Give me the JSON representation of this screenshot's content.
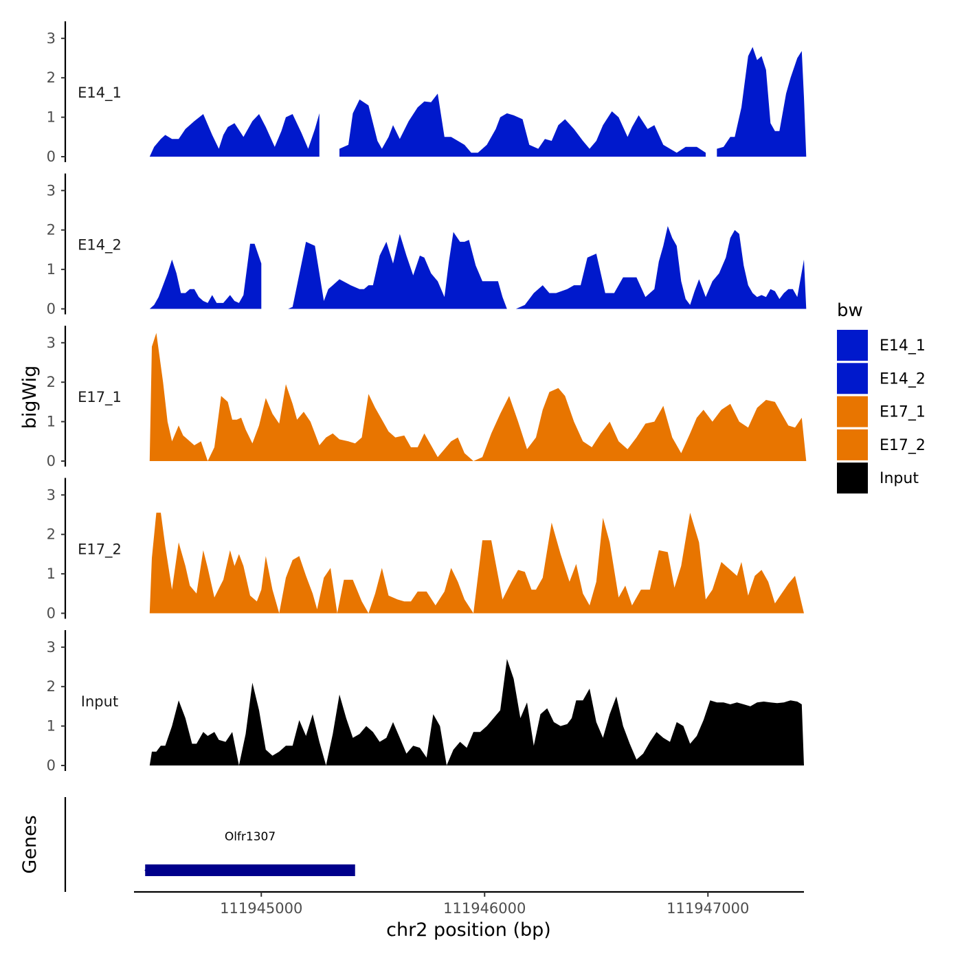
{
  "chart_data": {
    "type": "area",
    "ylabel": "bigWig",
    "xlabel": "chr2 position (bp)",
    "gene_track_label": "Genes",
    "legend_title": "bw",
    "legend_position": "right",
    "xlim": [
      111944430,
      111947430
    ],
    "ylim": [
      0,
      3.3
    ],
    "y_ticks": [
      "0",
      "1",
      "2",
      "3"
    ],
    "x_ticks": [
      {
        "value": 111945000,
        "label": "111945000"
      },
      {
        "value": 111946000,
        "label": "111946000"
      },
      {
        "value": 111947000,
        "label": "111947000"
      }
    ],
    "series": [
      {
        "name": "E14_1",
        "color": "#0019CC",
        "x": [
          111944500,
          111944520,
          111944550,
          111944570,
          111944600,
          111944630,
          111944660,
          111944700,
          111944740,
          111944780,
          111944810,
          111944830,
          111944850,
          111944880,
          111944920,
          111944960,
          111944990,
          111945020,
          111945060,
          111945090,
          111945110,
          111945140,
          111945180,
          111945210,
          111945240,
          111945260,
          111945280,
          111945320,
          111945350,
          111945390,
          111945410,
          111945440,
          111945480,
          111945520,
          111945540,
          111945570,
          111945590,
          111945620,
          111945660,
          111945700,
          111945730,
          111945760,
          111945790,
          111945820,
          111945850,
          111945880,
          111945910,
          111945940,
          111945970,
          111946010,
          111946050,
          111946070,
          111946100,
          111946130,
          111946170,
          111946200,
          111946240,
          111946270,
          111946300,
          111946330,
          111946360,
          111946400,
          111946440,
          111946470,
          111946500,
          111946530,
          111946570,
          111946600,
          111946640,
          111946660,
          111946690,
          111946730,
          111946760,
          111946800,
          111946860,
          111946900,
          111946950,
          111946990,
          111947010,
          111947040,
          111947070,
          111947100,
          111947120,
          111947150,
          111947180,
          111947200,
          111947220,
          111947240,
          111947260,
          111947280,
          111947300,
          111947320,
          111947350,
          111947370,
          111947400,
          111947420,
          111947430,
          111947440
        ],
        "y": [
          0,
          0.25,
          0.45,
          0.55,
          0.45,
          0.45,
          0.7,
          0.9,
          1.08,
          0.55,
          0.2,
          0.55,
          0.75,
          0.85,
          0.5,
          0.9,
          1.08,
          0.75,
          0.25,
          0.65,
          1.0,
          1.08,
          0.6,
          0.2,
          0.7,
          1.1,
          1.25,
          0.3,
          0.2,
          0.3,
          1.1,
          1.45,
          1.3,
          0.4,
          0.2,
          0.5,
          0.8,
          0.45,
          0.9,
          1.25,
          1.4,
          1.38,
          1.6,
          0.5,
          0.5,
          0.4,
          0.3,
          0.1,
          0.1,
          0.3,
          0.7,
          1.0,
          1.1,
          1.05,
          0.95,
          0.3,
          0.2,
          0.45,
          0.4,
          0.8,
          0.95,
          0.7,
          0.4,
          0.2,
          0.4,
          0.8,
          1.15,
          1.0,
          0.5,
          0.75,
          1.05,
          0.7,
          0.8,
          0.3,
          0.1,
          0.25,
          0.25,
          0.1,
          0.05,
          0.2,
          0.25,
          0.5,
          0.5,
          1.25,
          2.55,
          2.78,
          2.45,
          2.55,
          2.2,
          0.85,
          0.65,
          0.65,
          1.6,
          2.0,
          2.5,
          2.68,
          1.5,
          0
        ],
        "gaps": [
          [
            111945270,
            111945350
          ],
          [
            111946990,
            111947020
          ]
        ]
      },
      {
        "name": "E14_2",
        "color": "#0019CC",
        "x": [
          111944500,
          111944520,
          111944540,
          111944560,
          111944580,
          111944600,
          111944620,
          111944640,
          111944660,
          111944680,
          111944700,
          111944720,
          111944740,
          111944760,
          111944780,
          111944800,
          111944830,
          111944860,
          111944880,
          111944900,
          111944920,
          111944950,
          111944970,
          111945000,
          111945050,
          111945080,
          111945100,
          111945120,
          111945140,
          111945160,
          111945200,
          111945240,
          111945280,
          111945300,
          111945320,
          111945350,
          111945400,
          111945440,
          111945460,
          111945480,
          111945500,
          111945530,
          111945560,
          111945590,
          111945620,
          111945650,
          111945680,
          111945710,
          111945730,
          111945760,
          111945790,
          111945820,
          111945840,
          111945860,
          111945890,
          111945910,
          111945930,
          111945960,
          111945990,
          111946020,
          111946060,
          111946080,
          111946100,
          111946140,
          111946180,
          111946220,
          111946260,
          111946290,
          111946320,
          111946370,
          111946400,
          111946430,
          111946460,
          111946500,
          111946540,
          111946580,
          111946620,
          111946680,
          111946720,
          111946760,
          111946780,
          111946800,
          111946820,
          111946840,
          111946860,
          111946880,
          111946900,
          111946920,
          111946940,
          111946960,
          111946990,
          111947020,
          111947050,
          111947080,
          111947100,
          111947120,
          111947140,
          111947160,
          111947180,
          111947200,
          111947220,
          111947240,
          111947260,
          111947280,
          111947300,
          111947320,
          111947340,
          111947360,
          111947380,
          111947400,
          111947430,
          111947440
        ],
        "y": [
          0,
          0.1,
          0.3,
          0.6,
          0.9,
          1.25,
          0.9,
          0.4,
          0.4,
          0.5,
          0.5,
          0.3,
          0.2,
          0.15,
          0.35,
          0.15,
          0.15,
          0.35,
          0.2,
          0.15,
          0.35,
          1.65,
          1.65,
          1.15,
          0.6,
          0.0,
          0.0,
          0.0,
          0.05,
          0.6,
          1.7,
          1.6,
          0.2,
          0.5,
          0.6,
          0.75,
          0.6,
          0.5,
          0.5,
          0.6,
          0.6,
          1.35,
          1.7,
          1.15,
          1.9,
          1.35,
          0.85,
          1.35,
          1.3,
          0.9,
          0.7,
          0.3,
          1.2,
          1.95,
          1.7,
          1.7,
          1.75,
          1.1,
          0.7,
          0.7,
          0.7,
          0.3,
          0.0,
          0.0,
          0.1,
          0.4,
          0.6,
          0.4,
          0.4,
          0.5,
          0.6,
          0.6,
          1.3,
          1.4,
          0.4,
          0.4,
          0.8,
          0.8,
          0.3,
          0.5,
          1.2,
          1.6,
          2.1,
          1.8,
          1.6,
          0.7,
          0.25,
          0.1,
          0.45,
          0.75,
          0.3,
          0.7,
          0.9,
          1.3,
          1.8,
          2.0,
          1.9,
          1.1,
          0.6,
          0.4,
          0.3,
          0.35,
          0.3,
          0.5,
          0.45,
          0.25,
          0.4,
          0.5,
          0.5,
          0.3,
          1.25,
          0
        ],
        "gaps": [
          [
            111945020,
            111945090
          ],
          [
            111946180,
            111946210
          ]
        ]
      },
      {
        "name": "E17_1",
        "color": "#E87500",
        "x": [
          111944500,
          111944510,
          111944530,
          111944560,
          111944580,
          111944600,
          111944630,
          111944650,
          111944670,
          111944700,
          111944730,
          111944760,
          111944790,
          111944820,
          111944850,
          111944870,
          111944890,
          111944910,
          111944930,
          111944960,
          111944990,
          111945020,
          111945050,
          111945080,
          111945110,
          111945140,
          111945160,
          111945190,
          111945220,
          111945260,
          111945290,
          111945320,
          111945350,
          111945390,
          111945420,
          111945450,
          111945480,
          111945510,
          111945540,
          111945570,
          111945600,
          111945640,
          111945670,
          111945700,
          111945730,
          111945760,
          111945790,
          111945820,
          111945850,
          111945880,
          111945910,
          111945950,
          111945990,
          111946030,
          111946070,
          111946110,
          111946150,
          111946190,
          111946230,
          111946260,
          111946290,
          111946330,
          111946360,
          111946400,
          111946440,
          111946480,
          111946520,
          111946560,
          111946600,
          111946640,
          111946680,
          111946720,
          111946760,
          111946800,
          111946840,
          111946880,
          111946920,
          111946950,
          111946980,
          111947020,
          111947060,
          111947100,
          111947140,
          111947180,
          111947220,
          111947260,
          111947300,
          111947330,
          111947360,
          111947390,
          111947420,
          111947440
        ],
        "y": [
          0,
          2.9,
          3.25,
          2.0,
          1.0,
          0.5,
          0.9,
          0.65,
          0.55,
          0.4,
          0.5,
          0.0,
          0.35,
          1.65,
          1.5,
          1.05,
          1.05,
          1.1,
          0.8,
          0.45,
          0.9,
          1.6,
          1.2,
          0.95,
          1.95,
          1.45,
          1.05,
          1.25,
          1.0,
          0.4,
          0.6,
          0.7,
          0.55,
          0.5,
          0.45,
          0.6,
          1.7,
          1.35,
          1.05,
          0.75,
          0.6,
          0.65,
          0.35,
          0.35,
          0.7,
          0.4,
          0.1,
          0.3,
          0.5,
          0.6,
          0.2,
          0.0,
          0.1,
          0.7,
          1.2,
          1.65,
          1.0,
          0.3,
          0.6,
          1.3,
          1.75,
          1.85,
          1.65,
          1.0,
          0.5,
          0.35,
          0.7,
          1.0,
          0.5,
          0.3,
          0.6,
          0.95,
          1.0,
          1.4,
          0.6,
          0.2,
          0.7,
          1.1,
          1.3,
          1.0,
          1.3,
          1.45,
          1.0,
          0.85,
          1.35,
          1.55,
          1.5,
          1.2,
          0.9,
          0.85,
          1.1,
          0
        ],
        "gaps": []
      },
      {
        "name": "E17_2",
        "color": "#E87500",
        "x": [
          111944500,
          111944510,
          111944530,
          111944550,
          111944570,
          111944600,
          111944630,
          111944660,
          111944680,
          111944710,
          111944740,
          111944760,
          111944790,
          111944830,
          111944860,
          111944880,
          111944900,
          111944920,
          111944950,
          111944980,
          111945000,
          111945020,
          111945050,
          111945080,
          111945110,
          111945140,
          111945170,
          111945200,
          111945230,
          111945250,
          111945280,
          111945310,
          111945340,
          111945370,
          111945410,
          111945450,
          111945480,
          111945510,
          111945540,
          111945570,
          111945610,
          111945640,
          111945670,
          111945700,
          111945740,
          111945780,
          111945820,
          111945850,
          111945880,
          111945910,
          111945950,
          111945990,
          111946030,
          111946080,
          111946120,
          111946150,
          111946180,
          111946210,
          111946230,
          111946260,
          111946300,
          111946340,
          111946380,
          111946410,
          111946440,
          111946470,
          111946500,
          111946530,
          111946560,
          111946600,
          111946630,
          111946660,
          111946700,
          111946740,
          111946780,
          111946820,
          111946850,
          111946880,
          111946920,
          111946960,
          111946990,
          111947020,
          111947060,
          111947100,
          111947130,
          111947150,
          111947180,
          111947210,
          111947240,
          111947270,
          111947300,
          111947330,
          111947360,
          111947390,
          111947430
        ],
        "y": [
          0,
          1.4,
          2.55,
          2.55,
          1.7,
          0.6,
          1.8,
          1.2,
          0.7,
          0.5,
          1.6,
          1.15,
          0.4,
          0.85,
          1.6,
          1.2,
          1.5,
          1.2,
          0.45,
          0.3,
          0.6,
          1.45,
          0.6,
          0.0,
          0.9,
          1.35,
          1.45,
          0.95,
          0.5,
          0.1,
          0.9,
          1.15,
          0.0,
          0.85,
          0.85,
          0.3,
          0.0,
          0.5,
          1.15,
          0.45,
          0.35,
          0.3,
          0.3,
          0.55,
          0.55,
          0.2,
          0.55,
          1.15,
          0.8,
          0.35,
          0.0,
          1.85,
          1.85,
          0.35,
          0.8,
          1.1,
          1.05,
          0.6,
          0.6,
          0.9,
          2.3,
          1.5,
          0.8,
          1.25,
          0.5,
          0.2,
          0.8,
          2.42,
          1.8,
          0.4,
          0.7,
          0.2,
          0.6,
          0.6,
          1.6,
          1.55,
          0.65,
          1.2,
          2.55,
          1.8,
          0.35,
          0.6,
          1.3,
          1.1,
          0.95,
          1.3,
          0.45,
          0.95,
          1.1,
          0.8,
          0.25,
          0.5,
          0.75,
          0.95,
          0
        ],
        "gaps": []
      },
      {
        "name": "Input",
        "color": "#000000",
        "x": [
          111944500,
          111944510,
          111944530,
          111944550,
          111944570,
          111944600,
          111944630,
          111944660,
          111944690,
          111944710,
          111944740,
          111944760,
          111944790,
          111944810,
          111944840,
          111944870,
          111944900,
          111944930,
          111944960,
          111944990,
          111945020,
          111945050,
          111945080,
          111945110,
          111945140,
          111945170,
          111945200,
          111945230,
          111945260,
          111945290,
          111945320,
          111945350,
          111945380,
          111945410,
          111945440,
          111945470,
          111945500,
          111945530,
          111945560,
          111945590,
          111945620,
          111945650,
          111945680,
          111945710,
          111945740,
          111945770,
          111945800,
          111945830,
          111945860,
          111945890,
          111945920,
          111945950,
          111945980,
          111946010,
          111946040,
          111946070,
          111946100,
          111946130,
          111946160,
          111946190,
          111946220,
          111946250,
          111946280,
          111946310,
          111946340,
          111946370,
          111946390,
          111946410,
          111946440,
          111946470,
          111946500,
          111946530,
          111946560,
          111946590,
          111946620,
          111946650,
          111946680,
          111946710,
          111946740,
          111946770,
          111946800,
          111946830,
          111946860,
          111946890,
          111946920,
          111946950,
          111946980,
          111947010,
          111947040,
          111947070,
          111947100,
          111947130,
          111947160,
          111947190,
          111947220,
          111947250,
          111947280,
          111947310,
          111947340,
          111947370,
          111947400,
          111947420,
          111947430
        ],
        "y": [
          0,
          0.35,
          0.35,
          0.5,
          0.5,
          1.0,
          1.65,
          1.2,
          0.55,
          0.55,
          0.85,
          0.75,
          0.85,
          0.65,
          0.6,
          0.85,
          0.0,
          0.8,
          2.1,
          1.4,
          0.4,
          0.25,
          0.35,
          0.5,
          0.5,
          1.15,
          0.75,
          1.3,
          0.6,
          0.0,
          0.8,
          1.8,
          1.2,
          0.7,
          0.8,
          1.0,
          0.85,
          0.6,
          0.7,
          1.1,
          0.7,
          0.3,
          0.5,
          0.45,
          0.2,
          1.3,
          1.0,
          0.0,
          0.4,
          0.6,
          0.45,
          0.85,
          0.85,
          1.0,
          1.2,
          1.4,
          2.7,
          2.2,
          1.2,
          1.6,
          0.5,
          1.3,
          1.45,
          1.1,
          1.0,
          1.05,
          1.2,
          1.65,
          1.65,
          1.95,
          1.1,
          0.7,
          1.3,
          1.75,
          1.0,
          0.55,
          0.15,
          0.3,
          0.6,
          0.85,
          0.7,
          0.6,
          1.1,
          1.0,
          0.55,
          0.75,
          1.15,
          1.65,
          1.6,
          1.6,
          1.55,
          1.6,
          1.55,
          1.5,
          1.6,
          1.62,
          1.6,
          1.58,
          1.6,
          1.65,
          1.62,
          1.55,
          0
        ],
        "gaps": []
      }
    ],
    "genes": [
      {
        "name": "Olfr1307",
        "start": 111944480,
        "end": 111945420,
        "color": "#00008B"
      }
    ]
  }
}
